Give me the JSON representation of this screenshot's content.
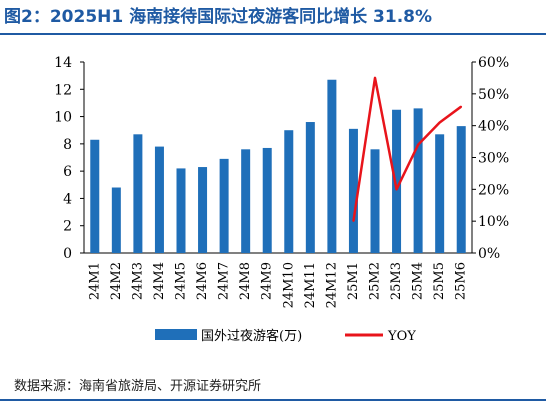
{
  "title": "图2：2025H1 海南接待国际过夜游客同比增长 31.8%",
  "source": "数据来源：海南省旅游局、开源证券研究所",
  "colors": {
    "bar": "#1f6fb9",
    "line": "#e8141b",
    "title": "#1f5aa3"
  },
  "chart_data": {
    "type": "bar",
    "categories": [
      "24M1",
      "24M2",
      "24M3",
      "24M4",
      "24M5",
      "24M6",
      "24M7",
      "24M8",
      "24M9",
      "24M10",
      "24M11",
      "24M12",
      "25M1",
      "25M2",
      "25M3",
      "25M4",
      "25M5",
      "25M6"
    ],
    "left_axis": {
      "min": 0,
      "max": 14,
      "ticks": [
        "0",
        "2",
        "4",
        "6",
        "8",
        "10",
        "12",
        "14"
      ]
    },
    "right_axis": {
      "min": 0,
      "max": 60,
      "ticks": [
        "0%",
        "10%",
        "20%",
        "30%",
        "40%",
        "50%",
        "60%"
      ]
    },
    "series": [
      {
        "name": "国外过夜游客(万)",
        "type": "bar",
        "axis": "left",
        "values": [
          8.3,
          4.8,
          8.7,
          7.8,
          6.2,
          6.3,
          6.9,
          7.6,
          7.7,
          9.0,
          9.6,
          12.7,
          9.1,
          7.6,
          10.5,
          10.6,
          8.7,
          9.3
        ]
      },
      {
        "name": "YOY",
        "type": "line",
        "axis": "right",
        "x": [
          "25M1",
          "25M2",
          "25M3",
          "25M4",
          "25M5",
          "25M6"
        ],
        "values": [
          10,
          55,
          20,
          34,
          41,
          46
        ]
      }
    ],
    "legend_position": "bottom",
    "grid": false
  }
}
